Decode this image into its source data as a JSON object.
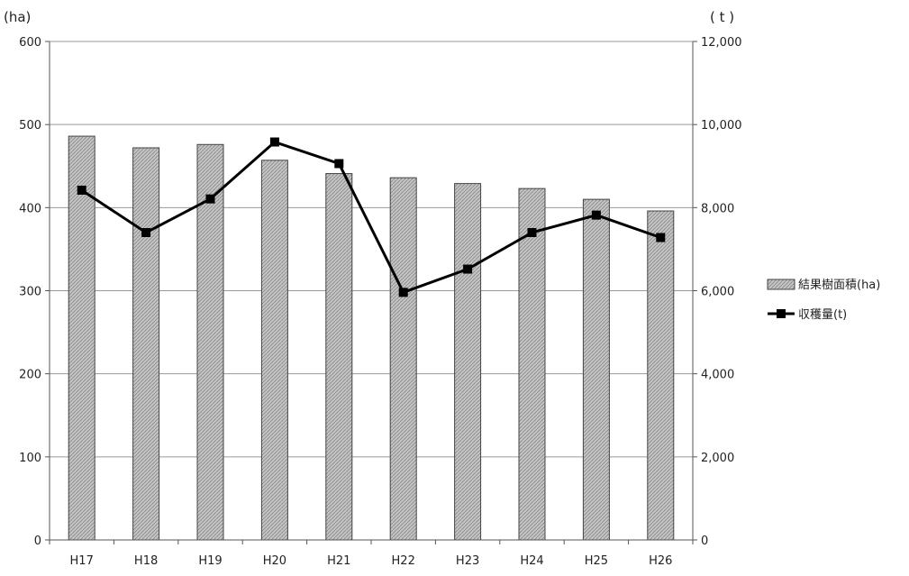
{
  "chart_data": {
    "type": "bar",
    "categories": [
      "H17",
      "H18",
      "H19",
      "H20",
      "H21",
      "H22",
      "H23",
      "H24",
      "H25",
      "H26"
    ],
    "series": [
      {
        "name": "結果樹面積(ha)",
        "type": "bar",
        "axis": "left",
        "values": [
          486,
          472,
          476,
          457,
          441,
          436,
          429,
          423,
          410,
          396
        ]
      },
      {
        "name": "収穫量(t)",
        "type": "line",
        "axis": "right",
        "values": [
          8420,
          7400,
          8210,
          9580,
          9060,
          5960,
          6520,
          7400,
          7820,
          7280
        ]
      }
    ],
    "ylabel_left": "(ha)",
    "ylabel_right": "( t )",
    "ylim_left": [
      0,
      600
    ],
    "ylim_right": [
      0,
      12000
    ],
    "yticks_left": [
      "0",
      "100",
      "200",
      "300",
      "400",
      "500",
      "600"
    ],
    "yticks_right": [
      "0",
      "2,000",
      "4,000",
      "6,000",
      "8,000",
      "10,000",
      "12,000"
    ],
    "grid": true,
    "legend": "right",
    "colors": {
      "bar_fill": "#b8b8b8",
      "bar_stroke": "#444444",
      "line": "#000000",
      "grid": "#9a9a9a"
    }
  }
}
